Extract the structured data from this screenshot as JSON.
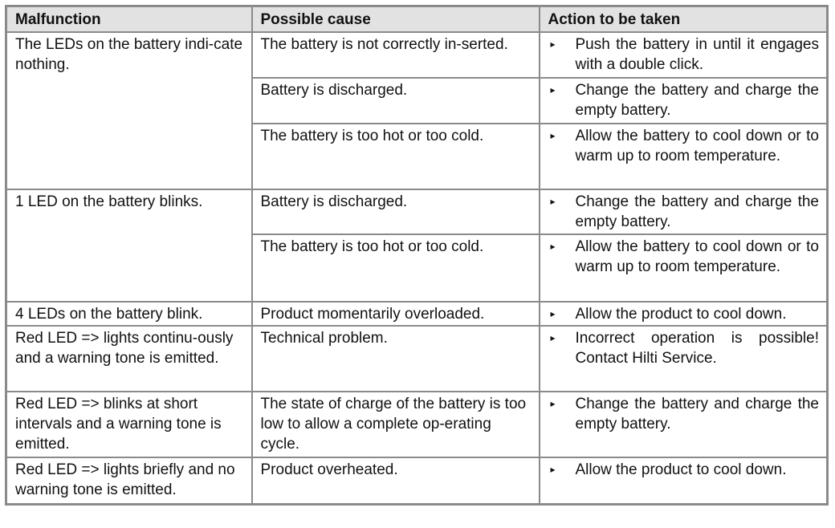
{
  "headers": {
    "malfunction": "Malfunction",
    "cause": "Possible cause",
    "action": "Action to be taken"
  },
  "bullet": "▸",
  "groups": [
    {
      "malfunction": "The LEDs on the battery indi-cate nothing.",
      "rows": [
        {
          "cause": "The battery is not correctly in-serted.",
          "action": "Push the battery in until it engages with a double click."
        },
        {
          "cause": "Battery is discharged.",
          "action": "Change the battery and charge the empty battery."
        },
        {
          "cause": "The battery is too hot or too cold.",
          "action": "Allow the battery to cool down or to warm up to room temperature."
        }
      ]
    },
    {
      "malfunction": "1 LED on the battery blinks.",
      "rows": [
        {
          "cause": "Battery is discharged.",
          "action": "Change the battery and charge the empty battery."
        },
        {
          "cause": "The battery is too hot or too cold.",
          "action": "Allow the battery to cool down or to warm up to room temperature."
        }
      ]
    },
    {
      "malfunction": "4 LEDs on the battery blink.",
      "rows": [
        {
          "cause": "Product momentarily overloaded.",
          "action": "Allow the product to cool down."
        }
      ]
    },
    {
      "malfunction": "Red LED => lights continu-ously and a warning tone is emitted.",
      "rows": [
        {
          "cause": "Technical problem.",
          "action": "Incorrect operation is possible! Contact Hilti Service."
        }
      ]
    },
    {
      "malfunction": "Red LED => blinks at short intervals and a warning tone is emitted.",
      "rows": [
        {
          "cause": "The state of charge of the battery is too low to allow a complete op-erating cycle.",
          "action": "Change the battery and charge the empty battery."
        }
      ]
    },
    {
      "malfunction": "Red LED => lights briefly and no warning tone is emitted.",
      "rows": [
        {
          "cause": "Product overheated.",
          "action": "Allow the product to cool down."
        }
      ]
    }
  ]
}
